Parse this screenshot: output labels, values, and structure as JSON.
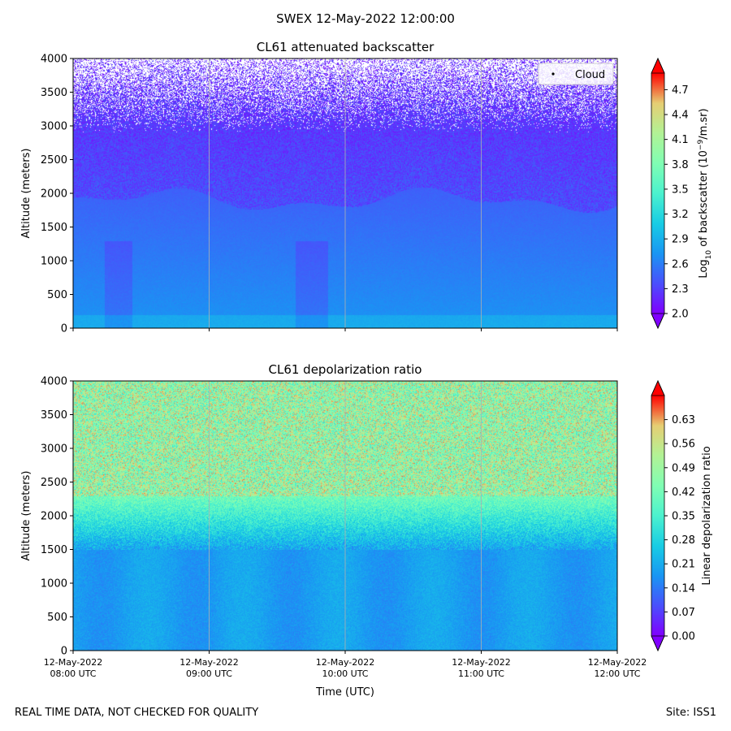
{
  "figure": {
    "suptitle": "SWEX 12-May-2022 12:00:00",
    "footer_left": "REAL TIME DATA, NOT CHECKED FOR QUALITY",
    "footer_right": "Site: ISS1"
  },
  "chart_data": [
    {
      "type": "heatmap",
      "title": "CL61 attenuated backscatter",
      "ylabel": "Altitude (meters)",
      "xlabel": "",
      "ylim": [
        0,
        4000
      ],
      "yticks": [
        0,
        500,
        1000,
        1500,
        2000,
        2500,
        3000,
        3500,
        4000
      ],
      "xlim_hours_utc": [
        8,
        12
      ],
      "xticks_hours": [
        8,
        9,
        10,
        11,
        12
      ],
      "xtick_labels": [],
      "grid": "vertical lines at each hour",
      "legend": {
        "entries": [
          "Cloud"
        ],
        "location": "upper right"
      },
      "colorbar": {
        "label_base": "Log",
        "label_sub": "10",
        "label_mid": " of backscatter (10",
        "label_exp": "−9",
        "label_end": "/m.sr)",
        "min": 2.0,
        "max": 4.9,
        "ticks": [
          "2.0",
          "2.3",
          "2.6",
          "2.9",
          "3.2",
          "3.5",
          "3.8",
          "4.1",
          "4.4",
          "4.7"
        ],
        "colormap": "rainbow",
        "extend": "both"
      },
      "field_description": "values near 2.6-2.8 below ~1900 m, dropping to ~2.1-2.3 above, sparse/missing above ~3000 m"
    },
    {
      "type": "heatmap",
      "title": "CL61 depolarization ratio",
      "ylabel": "Altitude (meters)",
      "xlabel": "Time (UTC)",
      "ylim": [
        0,
        4000
      ],
      "yticks": [
        0,
        500,
        1000,
        1500,
        2000,
        2500,
        3000,
        3500,
        4000
      ],
      "xlim_hours_utc": [
        8,
        12
      ],
      "xticks_hours": [
        8,
        9,
        10,
        11,
        12
      ],
      "xtick_labels": [
        [
          "12-May-2022",
          "08:00 UTC"
        ],
        [
          "12-May-2022",
          "09:00 UTC"
        ],
        [
          "12-May-2022",
          "10:00 UTC"
        ],
        [
          "12-May-2022",
          "11:00 UTC"
        ],
        [
          "12-May-2022",
          "12:00 UTC"
        ]
      ],
      "grid": "vertical lines at each hour",
      "colorbar": {
        "label": "Linear depolarization ratio",
        "min": 0.0,
        "max": 0.7,
        "ticks": [
          "0.00",
          "0.07",
          "0.14",
          "0.21",
          "0.28",
          "0.35",
          "0.42",
          "0.49",
          "0.56",
          "0.63"
        ],
        "colormap": "rainbow",
        "extend": "both"
      },
      "field_description": "~0.17-0.21 below ~1500 m, rising through ~0.3 near 2000 m to ~0.45-0.65 noisy above 2500 m"
    }
  ]
}
